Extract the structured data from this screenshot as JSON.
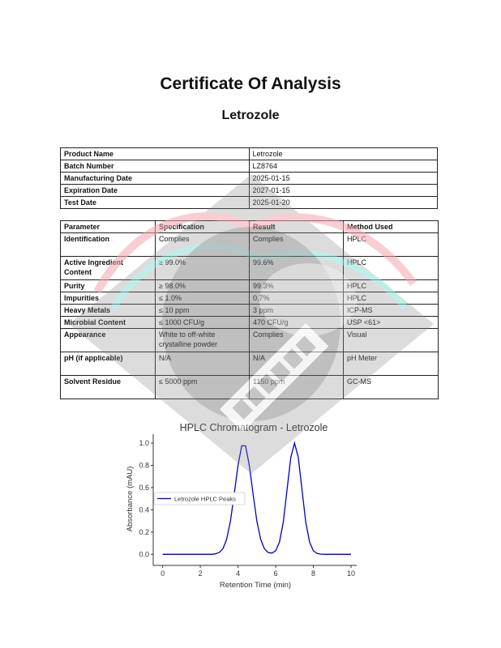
{
  "document": {
    "title": "Certificate Of Analysis",
    "product_heading": "Letrozole"
  },
  "info_table": [
    {
      "label": "Product Name",
      "value": "Letrozole"
    },
    {
      "label": "Batch Number",
      "value": "LZ8764"
    },
    {
      "label": "Manufacturing Date",
      "value": "2025-01-15"
    },
    {
      "label": "Expiration Date",
      "value": "2027-01-15"
    },
    {
      "label": "Test Date",
      "value": "2025-01-20"
    }
  ],
  "param_table": {
    "headers": [
      "Parameter",
      "Specification",
      "Result",
      "Method Used"
    ],
    "rows": [
      [
        "Identification",
        "Complies",
        "Complies",
        "HPLC"
      ],
      [
        "Active Ingredient Content",
        "≥ 99.0%",
        "99.6%",
        "HPLC"
      ],
      [
        "Purity",
        "≥ 98.0%",
        "99.3%",
        "HPLC"
      ],
      [
        "Impurities",
        "≤ 1.0%",
        "0.7%",
        "HPLC"
      ],
      [
        "Heavy Metals",
        "≤ 10 ppm",
        "3 ppm",
        "ICP-MS"
      ],
      [
        "Microbial Content",
        "≤ 1000 CFU/g",
        "470 CFU/g",
        "USP <61>"
      ],
      [
        "Appearance",
        "White to off-white crystalline powder",
        "Complies",
        "Visual"
      ],
      [
        "pH (if applicable)",
        "N/A",
        "N/A",
        "pH Meter"
      ],
      [
        "Solvent Residue",
        "≤ 5000 ppm",
        "1150 ppm",
        "GC-MS"
      ]
    ]
  },
  "watermark": {
    "text": "BEHEMOTH LABZ",
    "icon": "gorilla-logo"
  },
  "chart_data": {
    "type": "line",
    "title": "HPLC Chromatogram - Letrozole",
    "xlabel": "Retention Time (min)",
    "ylabel": "Absorbance (mAU)",
    "xlim": [
      -0.5,
      10.3
    ],
    "ylim": [
      -0.1,
      1.08
    ],
    "xticks": [
      0,
      2,
      4,
      6,
      8,
      10
    ],
    "yticks": [
      0.0,
      0.2,
      0.4,
      0.6,
      0.8,
      1.0
    ],
    "grid": false,
    "legend_position": "center-left",
    "color": "#0000cc",
    "series": [
      {
        "name": "Letrozole HPLC Peaks",
        "x": [
          0,
          0.2,
          0.4,
          0.6,
          0.8,
          1.0,
          1.2,
          1.4,
          1.6,
          1.8,
          2.0,
          2.2,
          2.4,
          2.6,
          2.8,
          3.0,
          3.2,
          3.4,
          3.6,
          3.8,
          4.0,
          4.2,
          4.4,
          4.6,
          4.8,
          5.0,
          5.2,
          5.4,
          5.6,
          5.8,
          6.0,
          6.2,
          6.4,
          6.6,
          6.8,
          7.0,
          7.2,
          7.4,
          7.6,
          7.8,
          8.0,
          8.2,
          8.4,
          8.6,
          8.8,
          9.0,
          9.2,
          9.4,
          9.6,
          9.8,
          10.0
        ],
        "y": [
          0,
          0,
          0,
          0,
          0,
          0,
          0,
          0,
          0,
          0,
          0,
          0,
          0,
          0,
          0.004,
          0.015,
          0.05,
          0.135,
          0.3,
          0.54,
          0.8,
          0.975,
          0.975,
          0.8,
          0.54,
          0.3,
          0.135,
          0.05,
          0.016,
          0.011,
          0.032,
          0.109,
          0.287,
          0.575,
          0.87,
          1.0,
          0.87,
          0.575,
          0.287,
          0.109,
          0.031,
          0.007,
          0.001,
          0,
          0,
          0,
          0,
          0,
          0,
          0,
          0
        ]
      }
    ]
  }
}
